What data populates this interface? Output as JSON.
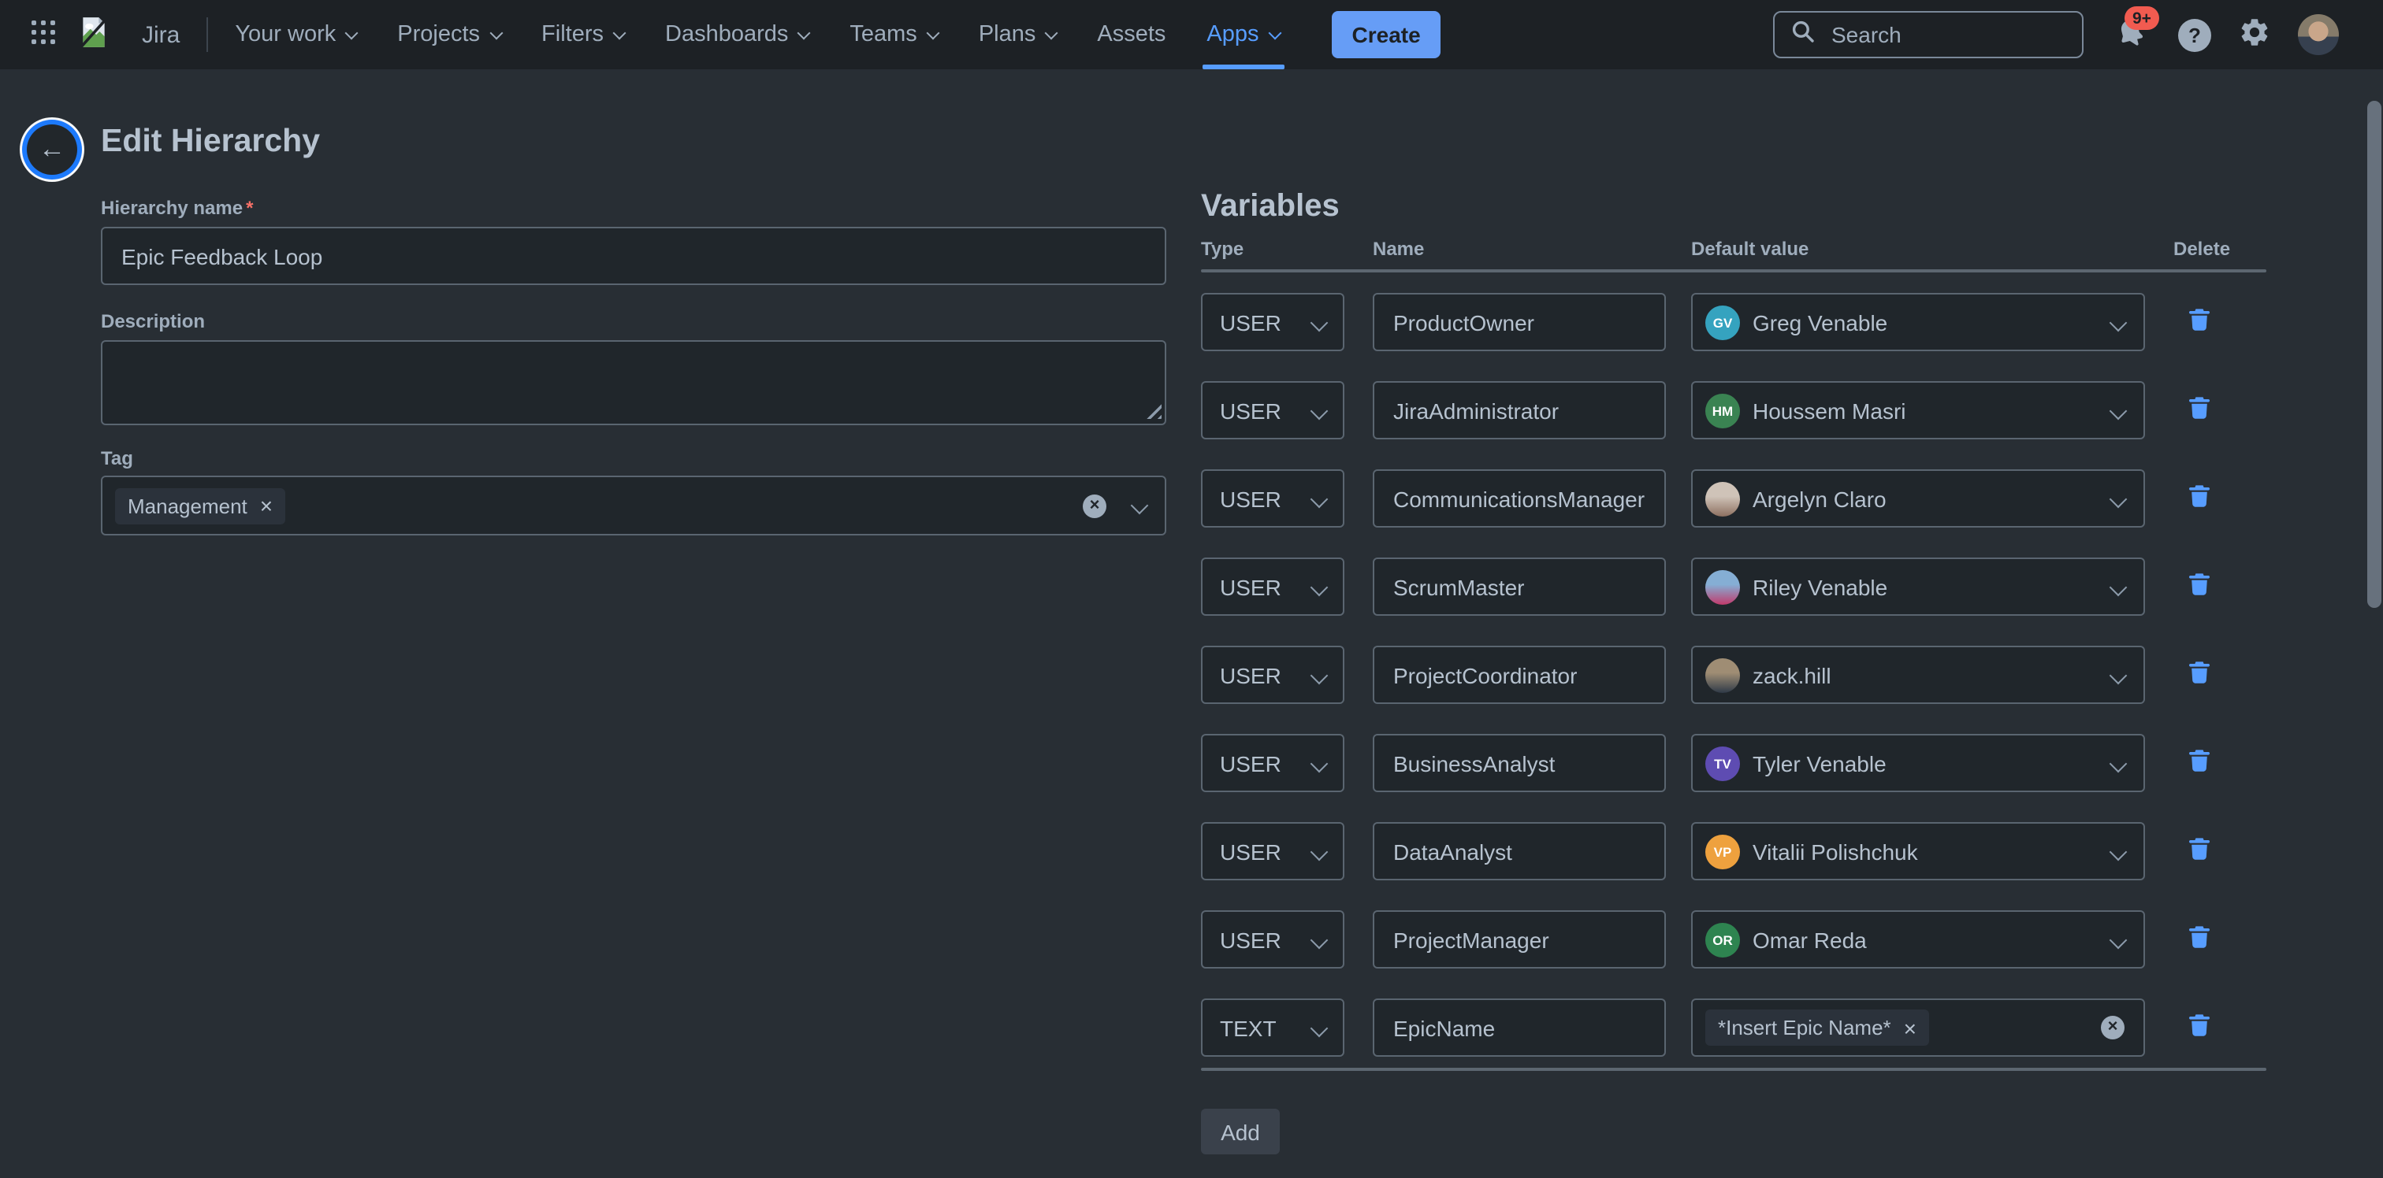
{
  "nav": {
    "brand": "Jira",
    "items": [
      {
        "label": "Your work",
        "chevron": true,
        "active": false
      },
      {
        "label": "Projects",
        "chevron": true,
        "active": false
      },
      {
        "label": "Filters",
        "chevron": true,
        "active": false
      },
      {
        "label": "Dashboards",
        "chevron": true,
        "active": false
      },
      {
        "label": "Teams",
        "chevron": true,
        "active": false
      },
      {
        "label": "Plans",
        "chevron": true,
        "active": false
      },
      {
        "label": "Assets",
        "chevron": false,
        "active": false
      },
      {
        "label": "Apps",
        "chevron": true,
        "active": true
      }
    ],
    "create_label": "Create",
    "search": {
      "placeholder": "Search"
    },
    "notification_badge": "9+",
    "help_glyph": "?"
  },
  "page": {
    "title": "Edit Hierarchy",
    "back_glyph": "←"
  },
  "form": {
    "hierarchy_name": {
      "label": "Hierarchy name",
      "required_mark": "*",
      "value": "Epic Feedback Loop"
    },
    "description": {
      "label": "Description",
      "value": ""
    },
    "tag": {
      "label": "Tag",
      "chips": [
        "Management"
      ],
      "chip_remove_glyph": "×",
      "clear_glyph": "×"
    }
  },
  "variables": {
    "heading": "Variables",
    "columns": [
      "Type",
      "Name",
      "Default value",
      "Delete"
    ],
    "rows": [
      {
        "type": "USER",
        "name": "ProductOwner",
        "default": {
          "kind": "initials",
          "display": "Greg Venable",
          "initials": "GV",
          "color": "#35A3BF"
        }
      },
      {
        "type": "USER",
        "name": "JiraAdministrator",
        "default": {
          "kind": "initials",
          "display": "Houssem Masri",
          "initials": "HM",
          "color": "#3A8352"
        }
      },
      {
        "type": "USER",
        "name": "CommunicationsManager",
        "default": {
          "kind": "photo",
          "display": "Argelyn Claro",
          "photo": [
            "#cfc3b8",
            "#8d7060"
          ]
        }
      },
      {
        "type": "USER",
        "name": "ScrumMaster",
        "default": {
          "kind": "photo",
          "display": "Riley Venable",
          "photo": [
            "#85aed4",
            "#c23a6b"
          ]
        }
      },
      {
        "type": "USER",
        "name": "ProjectCoordinator",
        "default": {
          "kind": "photo",
          "display": "zack.hill",
          "photo": [
            "#9f8d74",
            "#2f3a48"
          ]
        }
      },
      {
        "type": "USER",
        "name": "BusinessAnalyst",
        "default": {
          "kind": "initials",
          "display": "Tyler Venable",
          "initials": "TV",
          "color": "#5E4CB2"
        }
      },
      {
        "type": "USER",
        "name": "DataAnalyst",
        "default": {
          "kind": "initials",
          "display": "Vitalii Polishchuk",
          "initials": "VP",
          "color": "#EEA13E"
        }
      },
      {
        "type": "USER",
        "name": "ProjectManager",
        "default": {
          "kind": "initials",
          "display": "Omar Reda",
          "initials": "OR",
          "color": "#2E8450"
        }
      },
      {
        "type": "TEXT",
        "name": "EpicName",
        "default": {
          "kind": "chip",
          "display": "*Insert Epic Name*"
        }
      }
    ],
    "add_label": "Add"
  },
  "colors": {
    "accent_blue": "#579DFF",
    "create_button": "#669DF6",
    "badge_red": "#F15B50",
    "required_red": "#F87168",
    "focus_ring": "#1D7AFC",
    "nav_bg": "#1D2125",
    "page_bg": "#282E34",
    "field_bg": "#20262B",
    "field_border": "#5A6570",
    "text": "#B6C2CF",
    "muted_text": "#9FADBC"
  }
}
